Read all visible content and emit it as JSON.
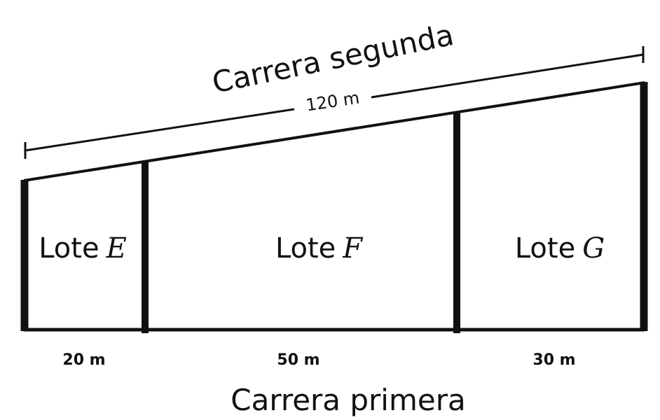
{
  "streets": {
    "top": "Carrera segunda",
    "bottom": "Carrera primera"
  },
  "dimension": {
    "label": "120 m"
  },
  "lots": [
    {
      "prefix": "Lote",
      "letter": "E",
      "width": "20 m"
    },
    {
      "prefix": "Lote",
      "letter": "F",
      "width": "50 m"
    },
    {
      "prefix": "Lote",
      "letter": "G",
      "width": "30 m"
    }
  ],
  "colors": {
    "ink": "#111111",
    "background": "#ffffff"
  }
}
